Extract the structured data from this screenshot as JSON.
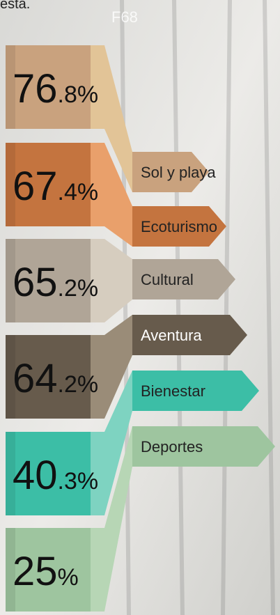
{
  "header": {
    "title": "esta.",
    "watermark": "F68"
  },
  "items": [
    {
      "value": "76.8%",
      "label": "Sol y playa",
      "color": "#c9a27e",
      "light": "#e2c497"
    },
    {
      "value": "67.4%",
      "label": "Ecoturismo",
      "color": "#c4743f",
      "light": "#e9a06b"
    },
    {
      "value": "65.2%",
      "label": "Cultural",
      "color": "#b0a597",
      "light": "#d6cdbf"
    },
    {
      "value": "64.2%",
      "label": "Aventura",
      "color": "#675b4c",
      "light": "#9a8c78"
    },
    {
      "value": "40.3%",
      "label": "Bienestar",
      "color": "#3cbea6",
      "light": "#7ed3c1"
    },
    {
      "value": "25%",
      "label": "Deportes",
      "color": "#9ec59f",
      "light": "#b7d6b5"
    }
  ]
}
